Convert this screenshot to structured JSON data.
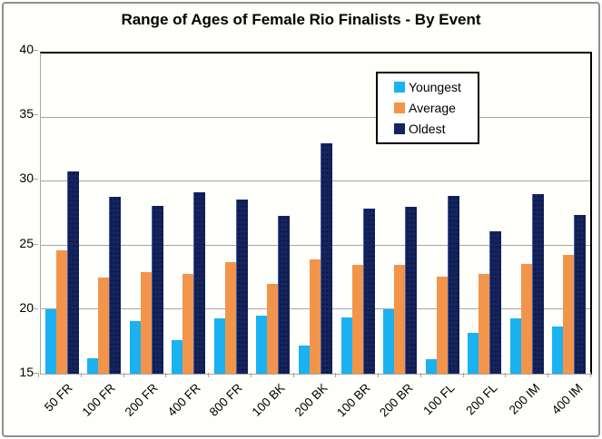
{
  "title": "Range of Ages of Female Rio Finalists - By Event",
  "chart_data": {
    "type": "bar",
    "title": "Range of Ages of Female Rio Finalists - By Event",
    "categories": [
      "50 FR",
      "100 FR",
      "200 FR",
      "400 FR",
      "800 FR",
      "100 BK",
      "200 BK",
      "100 BR",
      "200 BR",
      "100 FL",
      "200 FL",
      "200 IM",
      "400 IM"
    ],
    "series": [
      {
        "name": "Youngest",
        "color": "#1ab2f0",
        "values": [
          20.0,
          16.2,
          19.1,
          17.6,
          19.3,
          19.5,
          17.2,
          19.4,
          20.0,
          16.1,
          18.2,
          19.3,
          18.7
        ]
      },
      {
        "name": "Average",
        "color": "#f2954a",
        "values": [
          24.6,
          22.5,
          22.9,
          22.8,
          23.7,
          22.0,
          23.9,
          23.5,
          23.5,
          22.6,
          22.8,
          23.6,
          24.3
        ]
      },
      {
        "name": "Oldest",
        "color": "#15245e",
        "values": [
          30.8,
          28.8,
          28.1,
          29.2,
          28.6,
          27.3,
          33.0,
          27.9,
          28.0,
          28.9,
          26.1,
          29.0,
          27.4
        ]
      }
    ],
    "xlabel": "",
    "ylabel": "",
    "ylim": [
      15,
      40
    ],
    "yticks": [
      15,
      20,
      25,
      30,
      35,
      40
    ],
    "grid": true,
    "legend_position": "top-right-inside"
  },
  "colors": {
    "grid": "#a6a6a6",
    "plot_border_dark": "#000000",
    "axis": "#a6a6a6",
    "frame_border": "#8f8f8f",
    "background": "#fefefa"
  }
}
